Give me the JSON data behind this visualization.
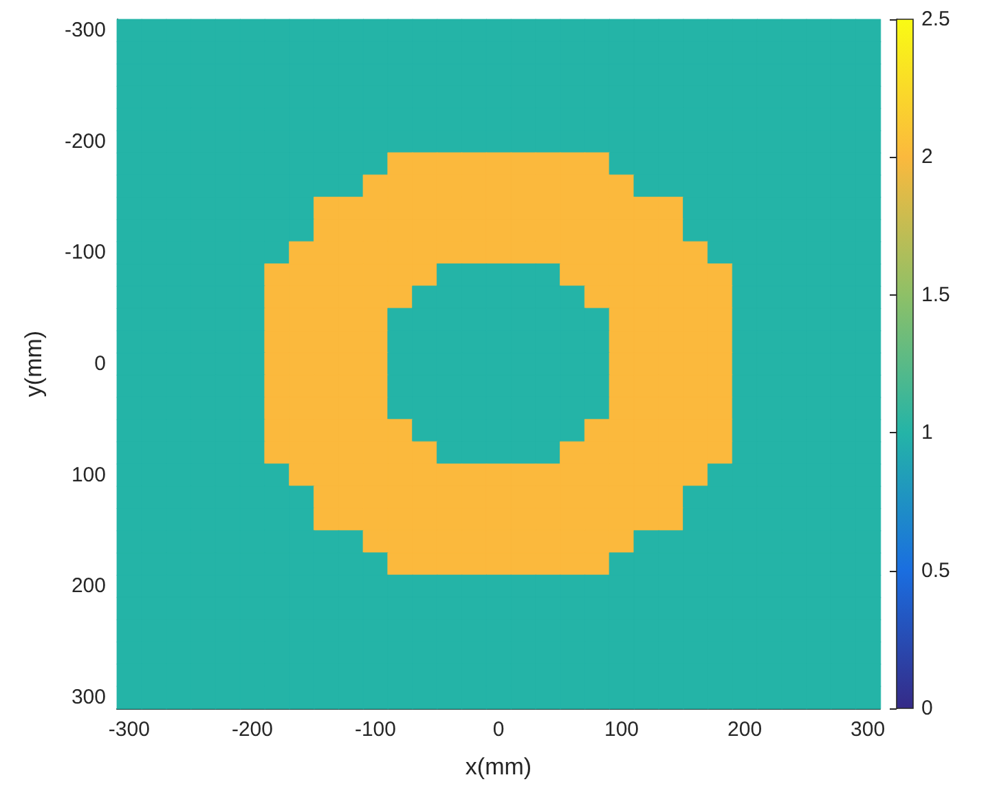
{
  "chart_data": {
    "type": "heatmap",
    "xlabel": "x(mm)",
    "ylabel": "y(mm)",
    "categories": [
      "-300",
      null,
      null,
      null,
      null,
      "-200",
      null,
      null,
      null,
      null,
      "-100",
      null,
      null,
      null,
      null,
      "0",
      null,
      null,
      null,
      null,
      "100",
      null,
      null,
      null,
      null,
      "200",
      null,
      null,
      null,
      null,
      "300"
    ],
    "y_categories": [
      "-300",
      null,
      null,
      null,
      null,
      "-200",
      null,
      null,
      null,
      null,
      "-100",
      null,
      null,
      null,
      null,
      "0",
      null,
      null,
      null,
      null,
      "100",
      null,
      null,
      null,
      null,
      "200",
      null,
      null,
      null,
      null,
      "300"
    ],
    "clim": [
      0,
      2.5
    ],
    "cticks": [
      0,
      0.5,
      1,
      1.5,
      2,
      2.5
    ],
    "cells": [
      [
        1,
        1,
        1,
        1,
        1,
        1,
        1,
        1,
        1,
        1,
        1,
        1,
        1,
        1,
        1,
        1,
        1,
        1,
        1,
        1,
        1,
        1,
        1,
        1,
        1,
        1,
        1,
        1,
        1,
        1,
        1
      ],
      [
        1,
        1,
        1,
        1,
        1,
        1,
        1,
        1,
        1,
        1,
        1,
        1,
        1,
        1,
        1,
        1,
        1,
        1,
        1,
        1,
        1,
        1,
        1,
        1,
        1,
        1,
        1,
        1,
        1,
        1,
        1
      ],
      [
        1,
        1,
        1,
        1,
        1,
        1,
        1,
        1,
        1,
        1,
        1,
        1,
        1,
        1,
        1,
        1,
        1,
        1,
        1,
        1,
        1,
        1,
        1,
        1,
        1,
        1,
        1,
        1,
        1,
        1,
        1
      ],
      [
        1,
        1,
        1,
        1,
        1,
        1,
        1,
        1,
        1,
        1,
        1,
        1,
        1,
        1,
        1,
        1,
        1,
        1,
        1,
        1,
        1,
        1,
        1,
        1,
        1,
        1,
        1,
        1,
        1,
        1,
        1
      ],
      [
        1,
        1,
        1,
        1,
        1,
        1,
        1,
        1,
        1,
        1,
        1,
        1,
        1,
        1,
        1,
        1,
        1,
        1,
        1,
        1,
        1,
        1,
        1,
        1,
        1,
        1,
        1,
        1,
        1,
        1,
        1
      ],
      [
        1,
        1,
        1,
        1,
        1,
        1,
        1,
        1,
        1,
        1,
        1,
        1,
        1,
        1,
        1,
        1,
        1,
        1,
        1,
        1,
        1,
        1,
        1,
        1,
        1,
        1,
        1,
        1,
        1,
        1,
        1
      ],
      [
        1,
        1,
        1,
        1,
        1,
        1,
        1,
        1,
        1,
        1,
        1,
        2,
        2,
        2,
        2,
        2,
        2,
        2,
        2,
        2,
        1,
        1,
        1,
        1,
        1,
        1,
        1,
        1,
        1,
        1,
        1
      ],
      [
        1,
        1,
        1,
        1,
        1,
        1,
        1,
        1,
        1,
        1,
        2,
        2,
        2,
        2,
        2,
        2,
        2,
        2,
        2,
        2,
        2,
        1,
        1,
        1,
        1,
        1,
        1,
        1,
        1,
        1,
        1
      ],
      [
        1,
        1,
        1,
        1,
        1,
        1,
        1,
        1,
        2,
        2,
        2,
        2,
        2,
        2,
        2,
        2,
        2,
        2,
        2,
        2,
        2,
        2,
        2,
        1,
        1,
        1,
        1,
        1,
        1,
        1,
        1
      ],
      [
        1,
        1,
        1,
        1,
        1,
        1,
        1,
        1,
        2,
        2,
        2,
        2,
        2,
        2,
        2,
        2,
        2,
        2,
        2,
        2,
        2,
        2,
        2,
        1,
        1,
        1,
        1,
        1,
        1,
        1,
        1
      ],
      [
        1,
        1,
        1,
        1,
        1,
        1,
        1,
        2,
        2,
        2,
        2,
        2,
        2,
        2,
        2,
        2,
        2,
        2,
        2,
        2,
        2,
        2,
        2,
        2,
        1,
        1,
        1,
        1,
        1,
        1,
        1
      ],
      [
        1,
        1,
        1,
        1,
        1,
        1,
        2,
        2,
        2,
        2,
        2,
        2,
        2,
        1,
        1,
        1,
        1,
        1,
        2,
        2,
        2,
        2,
        2,
        2,
        2,
        1,
        1,
        1,
        1,
        1,
        1
      ],
      [
        1,
        1,
        1,
        1,
        1,
        1,
        2,
        2,
        2,
        2,
        2,
        2,
        1,
        1,
        1,
        1,
        1,
        1,
        1,
        2,
        2,
        2,
        2,
        2,
        2,
        1,
        1,
        1,
        1,
        1,
        1
      ],
      [
        1,
        1,
        1,
        1,
        1,
        1,
        2,
        2,
        2,
        2,
        2,
        1,
        1,
        1,
        1,
        1,
        1,
        1,
        1,
        1,
        2,
        2,
        2,
        2,
        2,
        1,
        1,
        1,
        1,
        1,
        1
      ],
      [
        1,
        1,
        1,
        1,
        1,
        1,
        2,
        2,
        2,
        2,
        2,
        1,
        1,
        1,
        1,
        1,
        1,
        1,
        1,
        1,
        2,
        2,
        2,
        2,
        2,
        1,
        1,
        1,
        1,
        1,
        1
      ],
      [
        1,
        1,
        1,
        1,
        1,
        1,
        2,
        2,
        2,
        2,
        2,
        1,
        1,
        1,
        1,
        1,
        1,
        1,
        1,
        1,
        2,
        2,
        2,
        2,
        2,
        1,
        1,
        1,
        1,
        1,
        1
      ],
      [
        1,
        1,
        1,
        1,
        1,
        1,
        2,
        2,
        2,
        2,
        2,
        1,
        1,
        1,
        1,
        1,
        1,
        1,
        1,
        1,
        2,
        2,
        2,
        2,
        2,
        1,
        1,
        1,
        1,
        1,
        1
      ],
      [
        1,
        1,
        1,
        1,
        1,
        1,
        2,
        2,
        2,
        2,
        2,
        1,
        1,
        1,
        1,
        1,
        1,
        1,
        1,
        1,
        2,
        2,
        2,
        2,
        2,
        1,
        1,
        1,
        1,
        1,
        1
      ],
      [
        1,
        1,
        1,
        1,
        1,
        1,
        2,
        2,
        2,
        2,
        2,
        2,
        1,
        1,
        1,
        1,
        1,
        1,
        1,
        2,
        2,
        2,
        2,
        2,
        2,
        1,
        1,
        1,
        1,
        1,
        1
      ],
      [
        1,
        1,
        1,
        1,
        1,
        1,
        2,
        2,
        2,
        2,
        2,
        2,
        2,
        1,
        1,
        1,
        1,
        1,
        2,
        2,
        2,
        2,
        2,
        2,
        2,
        1,
        1,
        1,
        1,
        1,
        1
      ],
      [
        1,
        1,
        1,
        1,
        1,
        1,
        1,
        2,
        2,
        2,
        2,
        2,
        2,
        2,
        2,
        2,
        2,
        2,
        2,
        2,
        2,
        2,
        2,
        2,
        1,
        1,
        1,
        1,
        1,
        1,
        1
      ],
      [
        1,
        1,
        1,
        1,
        1,
        1,
        1,
        1,
        2,
        2,
        2,
        2,
        2,
        2,
        2,
        2,
        2,
        2,
        2,
        2,
        2,
        2,
        2,
        1,
        1,
        1,
        1,
        1,
        1,
        1,
        1
      ],
      [
        1,
        1,
        1,
        1,
        1,
        1,
        1,
        1,
        2,
        2,
        2,
        2,
        2,
        2,
        2,
        2,
        2,
        2,
        2,
        2,
        2,
        2,
        2,
        1,
        1,
        1,
        1,
        1,
        1,
        1,
        1
      ],
      [
        1,
        1,
        1,
        1,
        1,
        1,
        1,
        1,
        1,
        1,
        2,
        2,
        2,
        2,
        2,
        2,
        2,
        2,
        2,
        2,
        2,
        1,
        1,
        1,
        1,
        1,
        1,
        1,
        1,
        1,
        1
      ],
      [
        1,
        1,
        1,
        1,
        1,
        1,
        1,
        1,
        1,
        1,
        1,
        2,
        2,
        2,
        2,
        2,
        2,
        2,
        2,
        2,
        1,
        1,
        1,
        1,
        1,
        1,
        1,
        1,
        1,
        1,
        1
      ],
      [
        1,
        1,
        1,
        1,
        1,
        1,
        1,
        1,
        1,
        1,
        1,
        1,
        1,
        1,
        1,
        1,
        1,
        1,
        1,
        1,
        1,
        1,
        1,
        1,
        1,
        1,
        1,
        1,
        1,
        1,
        1
      ],
      [
        1,
        1,
        1,
        1,
        1,
        1,
        1,
        1,
        1,
        1,
        1,
        1,
        1,
        1,
        1,
        1,
        1,
        1,
        1,
        1,
        1,
        1,
        1,
        1,
        1,
        1,
        1,
        1,
        1,
        1,
        1
      ],
      [
        1,
        1,
        1,
        1,
        1,
        1,
        1,
        1,
        1,
        1,
        1,
        1,
        1,
        1,
        1,
        1,
        1,
        1,
        1,
        1,
        1,
        1,
        1,
        1,
        1,
        1,
        1,
        1,
        1,
        1,
        1
      ],
      [
        1,
        1,
        1,
        1,
        1,
        1,
        1,
        1,
        1,
        1,
        1,
        1,
        1,
        1,
        1,
        1,
        1,
        1,
        1,
        1,
        1,
        1,
        1,
        1,
        1,
        1,
        1,
        1,
        1,
        1,
        1
      ],
      [
        1,
        1,
        1,
        1,
        1,
        1,
        1,
        1,
        1,
        1,
        1,
        1,
        1,
        1,
        1,
        1,
        1,
        1,
        1,
        1,
        1,
        1,
        1,
        1,
        1,
        1,
        1,
        1,
        1,
        1,
        1
      ],
      [
        1,
        1,
        1,
        1,
        1,
        1,
        1,
        1,
        1,
        1,
        1,
        1,
        1,
        1,
        1,
        1,
        1,
        1,
        1,
        1,
        1,
        1,
        1,
        1,
        1,
        1,
        1,
        1,
        1,
        1,
        1
      ]
    ]
  }
}
